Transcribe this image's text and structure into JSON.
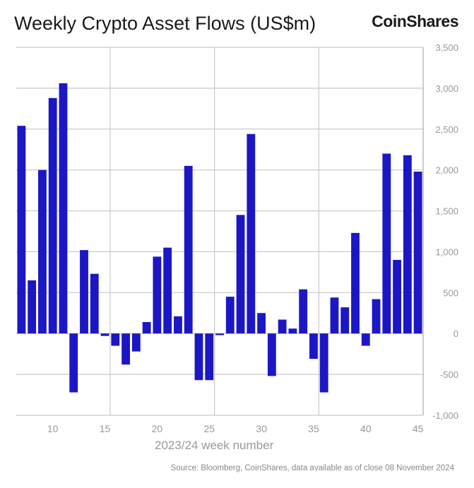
{
  "header": {
    "title": "Weekly Crypto Asset Flows (US$m)",
    "logo": "CoinShares"
  },
  "footer": {
    "source": "Source: Bloomberg, CoinShares, data available as of close 08 November 2024"
  },
  "chart_data": {
    "type": "bar",
    "title": "Weekly Crypto Asset Flows (US$m)",
    "xlabel": "2023/24 week number",
    "ylabel": "",
    "x": [
      7,
      8,
      9,
      10,
      11,
      12,
      13,
      14,
      15,
      16,
      17,
      18,
      19,
      20,
      21,
      22,
      23,
      24,
      25,
      26,
      27,
      28,
      29,
      30,
      31,
      32,
      33,
      34,
      35,
      36,
      37,
      38,
      39,
      40,
      41,
      42,
      43,
      44,
      45
    ],
    "values": [
      2540,
      650,
      2000,
      2880,
      3060,
      -720,
      1020,
      730,
      -30,
      -150,
      -380,
      -220,
      140,
      940,
      1050,
      210,
      2050,
      -570,
      -570,
      -20,
      450,
      1450,
      2440,
      250,
      -520,
      170,
      60,
      540,
      -310,
      -720,
      440,
      320,
      1230,
      -150,
      420,
      2200,
      900,
      2180,
      1980
    ],
    "xticks": [
      10,
      15,
      20,
      25,
      30,
      35,
      40,
      45
    ],
    "yticks": [
      -1000,
      -500,
      0,
      500,
      1000,
      1500,
      2000,
      2500,
      3000,
      3500
    ],
    "ytick_labels": [
      "-1,000",
      "-500",
      "0",
      "500",
      "1,000",
      "1,500",
      "2,000",
      "2,500",
      "3,000",
      "3,500"
    ],
    "ylim": [
      -1000,
      3500
    ],
    "xlim": [
      6.5,
      45.5
    ],
    "y_axis_side": "right",
    "grid": true,
    "bar_color": "#1c17c4",
    "grid_color": "#c8c8c8"
  }
}
